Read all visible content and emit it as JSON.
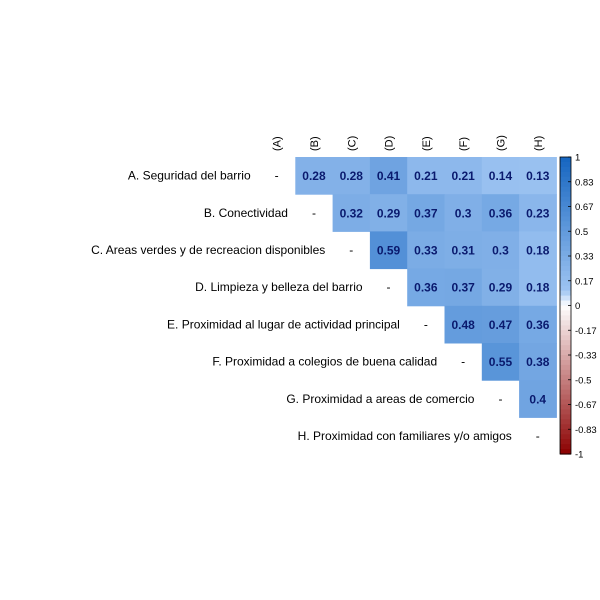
{
  "chart_data": {
    "type": "heatmap",
    "title": "",
    "xlabel": "",
    "ylabel": "",
    "columns": [
      "(A)",
      "(B)",
      "(C)",
      "(D)",
      "(E)",
      "(F)",
      "(G)",
      "(H)"
    ],
    "rows": [
      "A. Seguridad del barrio",
      "B. Conectividad",
      "C. Areas verdes y de recreacion disponibles",
      "D. Limpieza y belleza del barrio",
      "E. Proximidad al lugar de actividad principal",
      "F. Proximidad a colegios de buena calidad",
      "G. Proximidad a areas de comercio",
      "H. Proximidad con familiares y/o amigos"
    ],
    "diagonal_label": "-",
    "values": [
      [
        null,
        0.28,
        0.28,
        0.41,
        0.21,
        0.21,
        0.14,
        0.13
      ],
      [
        null,
        null,
        0.32,
        0.29,
        0.37,
        0.3,
        0.36,
        0.23
      ],
      [
        null,
        null,
        null,
        0.59,
        0.33,
        0.31,
        0.3,
        0.18
      ],
      [
        null,
        null,
        null,
        null,
        0.36,
        0.37,
        0.29,
        0.18
      ],
      [
        null,
        null,
        null,
        null,
        null,
        0.48,
        0.47,
        0.36
      ],
      [
        null,
        null,
        null,
        null,
        null,
        null,
        0.55,
        0.38
      ],
      [
        null,
        null,
        null,
        null,
        null,
        null,
        null,
        0.4
      ],
      [
        null,
        null,
        null,
        null,
        null,
        null,
        null,
        null
      ]
    ],
    "legend": {
      "placement": "right",
      "range": [
        -1,
        1
      ],
      "ticks": [
        "1",
        "0.83",
        "0.67",
        "0.5",
        "0.33",
        "0.17",
        "0",
        "-0.17",
        "-0.33",
        "-0.5",
        "-0.67",
        "-0.83",
        "-1"
      ]
    },
    "colors": {
      "positive": "#1565c0",
      "negative": "#8b0000",
      "label_text": "#0a1a6e"
    }
  }
}
